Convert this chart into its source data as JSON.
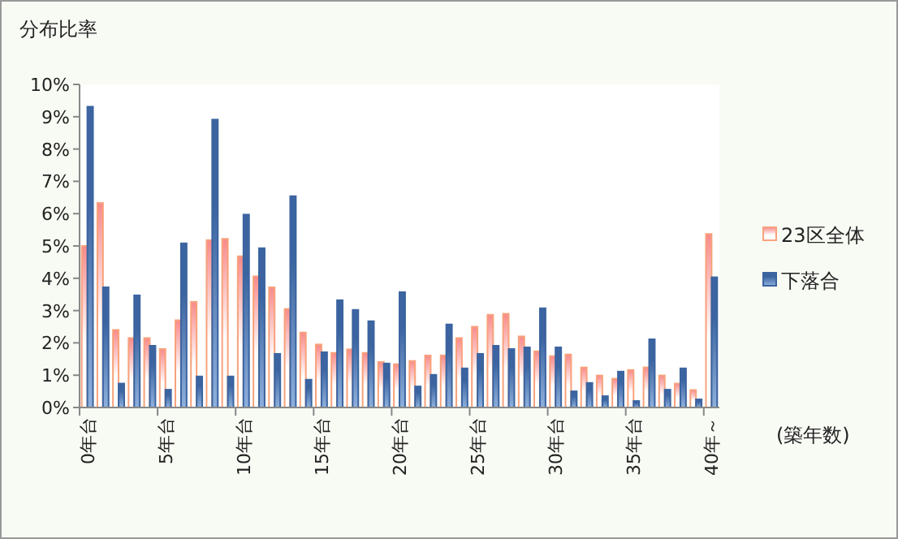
{
  "chart_data": {
    "type": "bar",
    "ylabel": "分布比率",
    "xlabel": "(築年数)",
    "categories": [
      "0年台",
      null,
      null,
      null,
      null,
      "5年台",
      null,
      null,
      null,
      null,
      "10年台",
      null,
      null,
      null,
      null,
      "15年台",
      null,
      null,
      null,
      null,
      "20年台",
      null,
      null,
      null,
      null,
      "25年台",
      null,
      null,
      null,
      null,
      "30年台",
      null,
      null,
      null,
      null,
      "35年台",
      null,
      null,
      null,
      null,
      "40年～"
    ],
    "series": [
      {
        "name": "23区全体",
        "color": "#f7a27c",
        "values": [
          5.0,
          6.33,
          2.4,
          2.15,
          2.15,
          1.81,
          2.7,
          3.27,
          5.18,
          5.22,
          4.68,
          4.06,
          3.72,
          3.05,
          2.32,
          1.95,
          1.69,
          1.8,
          1.69,
          1.41,
          1.34,
          1.44,
          1.61,
          1.61,
          2.15,
          2.5,
          2.87,
          2.9,
          2.2,
          1.74,
          1.59,
          1.64,
          1.24,
          0.99,
          0.89,
          1.16,
          1.24,
          0.99,
          0.74,
          0.54,
          5.37
        ]
      },
      {
        "name": "下落合",
        "color": "#3b64a0",
        "values": [
          9.31,
          3.72,
          0.74,
          3.47,
          1.91,
          0.55,
          5.08,
          0.96,
          8.91,
          0.96,
          5.97,
          4.93,
          1.66,
          6.54,
          0.86,
          1.71,
          3.32,
          3.02,
          2.67,
          1.36,
          3.57,
          0.65,
          1.01,
          2.57,
          1.21,
          1.66,
          1.91,
          1.81,
          1.86,
          3.07,
          1.86,
          0.5,
          0.76,
          0.35,
          1.11,
          0.2,
          2.11,
          0.55,
          1.21,
          0.25,
          4.03
        ]
      }
    ],
    "ylim": [
      0,
      10
    ],
    "yticks": [
      {
        "value": 0,
        "label": "0%"
      },
      {
        "value": 1,
        "label": "1%"
      },
      {
        "value": 2,
        "label": "2%"
      },
      {
        "value": 3,
        "label": "3%"
      },
      {
        "value": 4,
        "label": "4%"
      },
      {
        "value": 5,
        "label": "5%"
      },
      {
        "value": 6,
        "label": "6%"
      },
      {
        "value": 7,
        "label": "7%"
      },
      {
        "value": 8,
        "label": "8%"
      },
      {
        "value": 9,
        "label": "9%"
      },
      {
        "value": 10,
        "label": "10%"
      }
    ],
    "grid": false,
    "legend": "right"
  }
}
